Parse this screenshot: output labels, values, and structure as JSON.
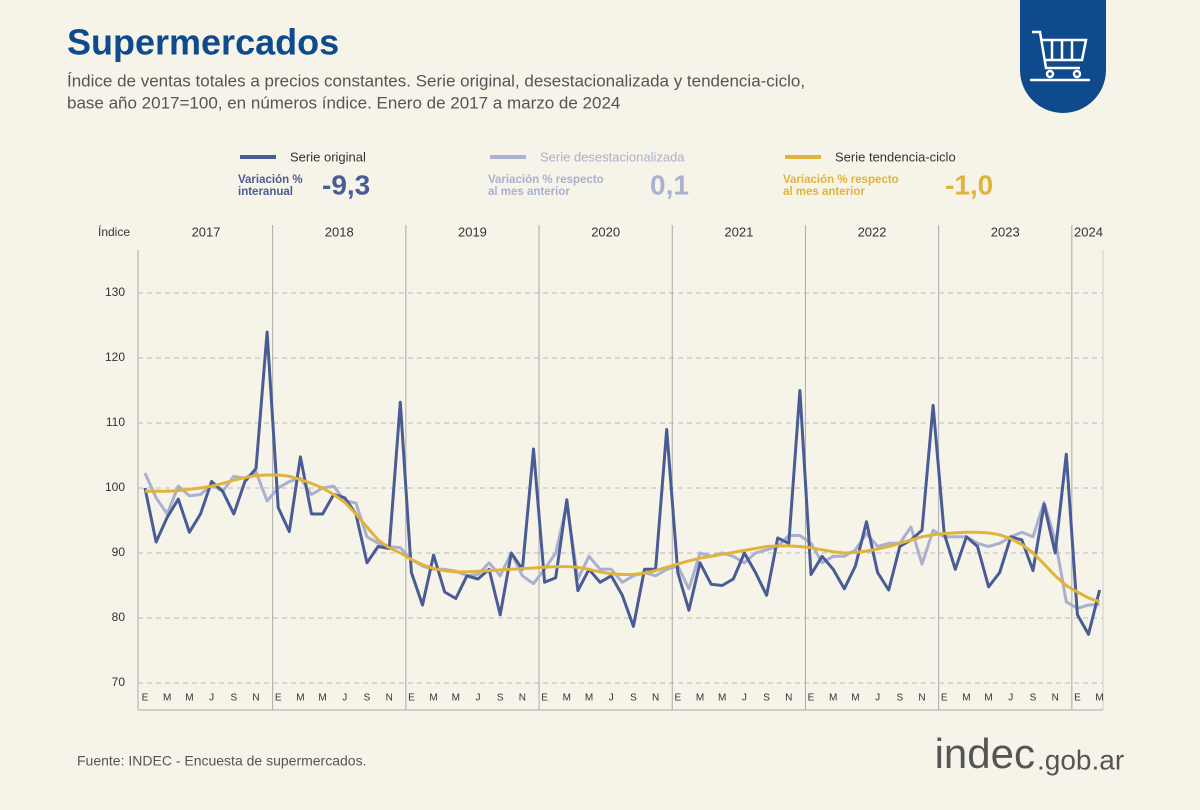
{
  "chart_data": {
    "type": "line",
    "title": "Supermercados",
    "subtitle": [
      "Índice de ventas totales a precios constantes. Serie original, desestacionalizada y tendencia-ciclo,",
      "base año 2017=100, en números índice. Enero de 2017 a marzo de 2024"
    ],
    "y_label": "Índice",
    "years": [
      "2017",
      "2018",
      "2019",
      "2020",
      "2021",
      "2022",
      "2023",
      "2024"
    ],
    "categories": [
      "E",
      null,
      "M",
      null,
      "M",
      null,
      "J",
      null,
      "S",
      null,
      "N",
      null,
      "E",
      null,
      "M",
      null,
      "M",
      null,
      "J",
      null,
      "S",
      null,
      "N",
      null,
      "E",
      null,
      "M",
      null,
      "M",
      null,
      "J",
      null,
      "S",
      null,
      "N",
      null,
      "E",
      null,
      "M",
      null,
      "M",
      null,
      "J",
      null,
      "S",
      null,
      "N",
      null,
      "E",
      null,
      "M",
      null,
      "M",
      null,
      "J",
      null,
      "S",
      null,
      "N",
      null,
      "E",
      null,
      "M",
      null,
      "M",
      null,
      "J",
      null,
      "S",
      null,
      "N",
      null,
      "E",
      null,
      "M",
      null,
      "M",
      null,
      "J",
      null,
      "S",
      null,
      "N",
      null,
      "E",
      null,
      "M"
    ],
    "ylim": [
      70,
      130
    ],
    "yticks": [
      70,
      80,
      90,
      100,
      110,
      120,
      130
    ],
    "grid": true,
    "series": [
      {
        "name": "Serie original",
        "color": "#4a5c96",
        "stat_label": [
          "Variación %",
          "interanual"
        ],
        "stat": "-9,3",
        "values": [
          100,
          91.7,
          95.5,
          98.3,
          93.2,
          96,
          101,
          99.5,
          96,
          101,
          103,
          124,
          97,
          93.3,
          104.8,
          96,
          96,
          99,
          98.5,
          96,
          88.5,
          91,
          90.7,
          113.2,
          87,
          82,
          89.7,
          84,
          83,
          86.5,
          86,
          87.5,
          80.5,
          90,
          87.5,
          106,
          85.5,
          86.2,
          98.2,
          84.2,
          87.5,
          85.5,
          86.5,
          83.5,
          78.7,
          87.5,
          87.5,
          109,
          87,
          81.2,
          88.5,
          85.2,
          85,
          86,
          90,
          87,
          83.5,
          92.3,
          91.5,
          115,
          86.7,
          89.5,
          87.5,
          84.5,
          88,
          94.8,
          87,
          84.3,
          91,
          92,
          93.5,
          112.7,
          93,
          87.5,
          92.5,
          91,
          84.8,
          87,
          92.5,
          92,
          87.3,
          97.5,
          90,
          105.2,
          80.5,
          77.5,
          84.3
        ]
      },
      {
        "name": "Serie desestacionalizada",
        "color": "#aab0d0",
        "stat_label": [
          "Variación % respecto",
          "al mes anterior"
        ],
        "stat": "0,1",
        "values": [
          102.3,
          98.5,
          96,
          100.3,
          98.8,
          99,
          100.5,
          99.5,
          101.8,
          101.5,
          102.5,
          98,
          100,
          101,
          101.5,
          99,
          100,
          100.3,
          98,
          97.7,
          92.5,
          91.5,
          91,
          90.8,
          89,
          88,
          87.5,
          87.5,
          87.2,
          86.5,
          86.7,
          88.5,
          86.5,
          90,
          86.5,
          85.3,
          87.5,
          90,
          97.5,
          86,
          89.5,
          87.5,
          87.5,
          85.5,
          86.5,
          87,
          86.5,
          87.5,
          88,
          84.5,
          90,
          89.5,
          90,
          89.5,
          88.5,
          90,
          90.5,
          91,
          92.7,
          92.7,
          91.5,
          88.5,
          89.5,
          89.5,
          90.5,
          93,
          91,
          91.5,
          91.5,
          94,
          88.3,
          93.5,
          92.5,
          92.5,
          92.5,
          91.5,
          91,
          91.5,
          92.5,
          93.2,
          92.5,
          97.8,
          92,
          82.5,
          81.5,
          82,
          82.1
        ]
      },
      {
        "name": "Serie tendencia-ciclo",
        "color": "#e0b43c",
        "stat_label": [
          "Variación % respecto",
          "al mes anterior"
        ],
        "stat": "-1,0",
        "values": [
          99.5,
          99.5,
          99.5,
          99.6,
          99.8,
          100,
          100.3,
          100.7,
          101.2,
          101.6,
          101.9,
          102,
          102,
          101.8,
          101.3,
          100.7,
          100,
          99,
          97.8,
          96,
          94,
          92,
          90.8,
          90,
          89,
          88.2,
          87.6,
          87.3,
          87.1,
          87.1,
          87.2,
          87.3,
          87.4,
          87.5,
          87.6,
          87.7,
          87.8,
          87.9,
          87.9,
          87.8,
          87.5,
          87.1,
          86.8,
          86.7,
          86.7,
          86.9,
          87.3,
          87.8,
          88.3,
          88.8,
          89.2,
          89.5,
          89.8,
          90.1,
          90.4,
          90.7,
          91,
          91.1,
          91.1,
          91,
          90.8,
          90.5,
          90.2,
          90,
          90.1,
          90.3,
          90.6,
          91,
          91.5,
          92,
          92.5,
          92.8,
          93,
          93.1,
          93.2,
          93.2,
          93.1,
          92.8,
          92.2,
          91.3,
          90,
          88.3,
          86.5,
          85,
          84,
          83.1,
          82.5
        ]
      }
    ],
    "source": "Fuente: INDEC - Encuesta de supermercados.",
    "logo": "indec",
    "logo_suffix": ".gob.ar"
  }
}
